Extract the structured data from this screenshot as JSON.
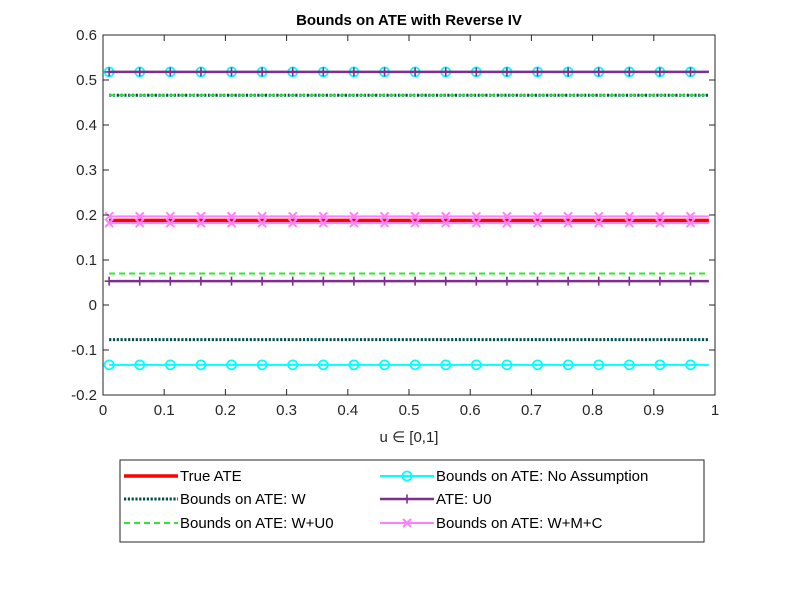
{
  "chart_data": {
    "type": "line",
    "title": "Bounds on ATE with Reverse IV",
    "xlabel": "u ∈ [0,1]",
    "ylabel": "",
    "xlim": [
      0,
      1
    ],
    "ylim": [
      -0.2,
      0.6
    ],
    "x_ticks": [
      "0",
      "0.1",
      "0.2",
      "0.3",
      "0.4",
      "0.5",
      "0.6",
      "0.7",
      "0.8",
      "0.9",
      "1"
    ],
    "y_ticks": [
      "-0.2",
      "-0.1",
      "0",
      "0.1",
      "0.2",
      "0.3",
      "0.4",
      "0.5",
      "0.6"
    ],
    "x_range": [
      0.01,
      0.99
    ],
    "marker_x": [
      0.01,
      0.06,
      0.11,
      0.16,
      0.21,
      0.26,
      0.31,
      0.36,
      0.41,
      0.46,
      0.51,
      0.56,
      0.61,
      0.66,
      0.71,
      0.76,
      0.81,
      0.86,
      0.91,
      0.96
    ],
    "grid": false,
    "legend_position": "bottom-outside",
    "series": [
      {
        "name": "True ATE",
        "color": "#ff0000",
        "style": "solid",
        "marker": "none",
        "values": [
          0.188
        ]
      },
      {
        "name": "Bounds on ATE: W",
        "color": "#004d4d",
        "style": "dotted",
        "marker": "none",
        "values": [
          0.466,
          -0.077
        ]
      },
      {
        "name": "Bounds on ATE: W+U0",
        "color": "#2ee82e",
        "style": "dashed",
        "marker": "none",
        "values": [
          0.466,
          0.07
        ]
      },
      {
        "name": "Bounds on ATE: No Assumption",
        "color": "#00ffff",
        "style": "solid",
        "marker": "circle",
        "values": [
          0.518,
          -0.133
        ]
      },
      {
        "name": "ATE: U0",
        "color": "#7e2f8e",
        "style": "solid",
        "marker": "plus",
        "values": [
          0.518,
          0.053
        ]
      },
      {
        "name": "Bounds on ATE: W+M+C",
        "color": "#ff80ff",
        "style": "solid",
        "marker": "x",
        "values": [
          0.197,
          0.182
        ]
      }
    ]
  }
}
